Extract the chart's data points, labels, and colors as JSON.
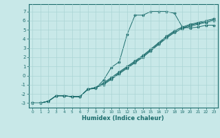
{
  "xlabel": "Humidex (Indice chaleur)",
  "bg_color": "#c8e8e8",
  "line_color": "#1a6b6b",
  "grid_color": "#aad4d4",
  "xlim": [
    -0.5,
    23.5
  ],
  "ylim": [
    -3.5,
    7.8
  ],
  "yticks": [
    -3,
    -2,
    -1,
    0,
    1,
    2,
    3,
    4,
    5,
    6,
    7
  ],
  "xticks": [
    0,
    1,
    2,
    3,
    4,
    5,
    6,
    7,
    8,
    9,
    10,
    11,
    12,
    13,
    14,
    15,
    16,
    17,
    18,
    19,
    20,
    21,
    22,
    23
  ],
  "line1_x": [
    0,
    1,
    2,
    3,
    4,
    5,
    6,
    7,
    8,
    9,
    10,
    11,
    12,
    13,
    14,
    15,
    16,
    17,
    18,
    19,
    20,
    21,
    22,
    23
  ],
  "line1_y": [
    -3.0,
    -3.0,
    -2.8,
    -2.2,
    -2.2,
    -2.3,
    -2.3,
    -1.5,
    -1.4,
    -0.5,
    0.9,
    1.5,
    4.5,
    6.6,
    6.6,
    7.0,
    7.0,
    7.0,
    6.8,
    5.3,
    5.2,
    5.3,
    5.5,
    5.5
  ],
  "line2_x": [
    0,
    1,
    2,
    3,
    4,
    5,
    6,
    7,
    8,
    9,
    10,
    11,
    12,
    13,
    14,
    15,
    16,
    17,
    18,
    19,
    20,
    21,
    22,
    23
  ],
  "line2_y": [
    -3.0,
    -3.0,
    -2.8,
    -2.2,
    -2.2,
    -2.3,
    -2.3,
    -1.5,
    -1.3,
    -1.0,
    -0.4,
    0.2,
    0.8,
    1.4,
    2.0,
    2.7,
    3.4,
    4.1,
    4.7,
    5.1,
    5.4,
    5.6,
    5.8,
    6.0
  ],
  "line3_x": [
    0,
    1,
    2,
    3,
    4,
    5,
    6,
    7,
    8,
    9,
    10,
    11,
    12,
    13,
    14,
    15,
    16,
    17,
    18,
    19,
    20,
    21,
    22,
    23
  ],
  "line3_y": [
    -3.0,
    -3.0,
    -2.8,
    -2.2,
    -2.2,
    -2.3,
    -2.3,
    -1.5,
    -1.3,
    -0.9,
    -0.3,
    0.3,
    0.9,
    1.5,
    2.1,
    2.8,
    3.5,
    4.2,
    4.8,
    5.2,
    5.5,
    5.7,
    5.9,
    6.1
  ],
  "line4_x": [
    0,
    1,
    2,
    3,
    4,
    5,
    6,
    7,
    8,
    9,
    10,
    11,
    12,
    13,
    14,
    15,
    16,
    17,
    18,
    19,
    20,
    21,
    22,
    23
  ],
  "line4_y": [
    -3.0,
    -3.0,
    -2.8,
    -2.2,
    -2.2,
    -2.3,
    -2.3,
    -1.5,
    -1.3,
    -0.8,
    -0.2,
    0.4,
    1.0,
    1.6,
    2.2,
    2.9,
    3.6,
    4.3,
    4.9,
    5.3,
    5.6,
    5.8,
    6.0,
    6.2
  ]
}
